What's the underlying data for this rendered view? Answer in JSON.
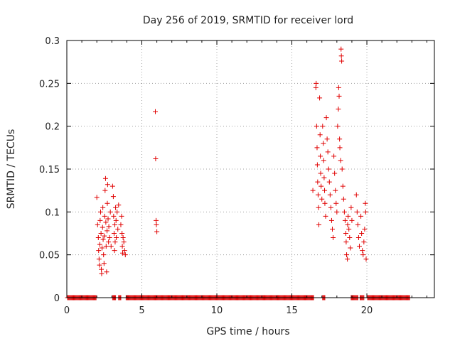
{
  "chart_data": {
    "type": "scatter",
    "title": "Day 256 of 2019, SRMTID for receiver lord",
    "xlabel": "GPS time / hours",
    "ylabel": "SRMTID / TECUs",
    "xlim": [
      0,
      24.5
    ],
    "ylim": [
      0,
      0.3
    ],
    "x_ticks": [
      0,
      5,
      10,
      15,
      20
    ],
    "x_tick_labels": [
      "0",
      "5",
      "10",
      "15",
      "20"
    ],
    "y_ticks": [
      0,
      0.05,
      0.1,
      0.15,
      0.2,
      0.25,
      0.3
    ],
    "y_tick_labels": [
      "0",
      "0.05",
      "0.1",
      "0.15",
      "0.2",
      "0.25",
      "0.3"
    ],
    "grid": true,
    "marker": "+",
    "series_color": "#e00000",
    "series": [
      {
        "name": "SRMTID",
        "points": [
          [
            2.0,
            0.117
          ],
          [
            2.05,
            0.085
          ],
          [
            2.1,
            0.07
          ],
          [
            2.12,
            0.055
          ],
          [
            2.15,
            0.045
          ],
          [
            2.18,
            0.038
          ],
          [
            2.2,
            0.062
          ],
          [
            2.22,
            0.09
          ],
          [
            2.25,
            0.1
          ],
          [
            2.28,
            0.075
          ],
          [
            2.3,
            0.033
          ],
          [
            2.32,
            0.028
          ],
          [
            2.35,
            0.058
          ],
          [
            2.38,
            0.082
          ],
          [
            2.4,
            0.105
          ],
          [
            2.42,
            0.068
          ],
          [
            2.45,
            0.05
          ],
          [
            2.48,
            0.04
          ],
          [
            2.5,
            0.072
          ],
          [
            2.52,
            0.095
          ],
          [
            2.55,
            0.125
          ],
          [
            2.58,
            0.139
          ],
          [
            2.6,
            0.088
          ],
          [
            2.62,
            0.06
          ],
          [
            2.65,
            0.03
          ],
          [
            2.68,
            0.078
          ],
          [
            2.7,
            0.11
          ],
          [
            2.72,
            0.132
          ],
          [
            2.75,
            0.092
          ],
          [
            2.78,
            0.065
          ],
          [
            2.8,
            0.083
          ],
          [
            2.85,
            0.07
          ],
          [
            2.9,
            0.1
          ],
          [
            2.95,
            0.06
          ],
          [
            3.05,
            0.13
          ],
          [
            3.1,
            0.118
          ],
          [
            3.12,
            0.095
          ],
          [
            3.15,
            0.075
          ],
          [
            3.18,
            0.055
          ],
          [
            3.2,
            0.085
          ],
          [
            3.22,
            0.065
          ],
          [
            3.25,
            0.105
          ],
          [
            3.28,
            0.09
          ],
          [
            3.3,
            0.07
          ],
          [
            3.35,
            0.1
          ],
          [
            3.4,
            0.08
          ],
          [
            3.45,
            0.108
          ],
          [
            3.6,
            0.085
          ],
          [
            3.65,
            0.095
          ],
          [
            3.68,
            0.075
          ],
          [
            3.7,
            0.06
          ],
          [
            3.72,
            0.052
          ],
          [
            3.75,
            0.07
          ],
          [
            3.8,
            0.065
          ],
          [
            3.85,
            0.055
          ],
          [
            3.9,
            0.05
          ],
          [
            5.9,
            0.217
          ],
          [
            5.92,
            0.162
          ],
          [
            5.95,
            0.09
          ],
          [
            5.97,
            0.085
          ],
          [
            6.0,
            0.077
          ],
          [
            16.4,
            0.125
          ],
          [
            16.6,
            0.245
          ],
          [
            16.62,
            0.25
          ],
          [
            16.65,
            0.2
          ],
          [
            16.68,
            0.175
          ],
          [
            16.7,
            0.155
          ],
          [
            16.72,
            0.135
          ],
          [
            16.75,
            0.12
          ],
          [
            16.78,
            0.105
          ],
          [
            16.8,
            0.085
          ],
          [
            16.85,
            0.233
          ],
          [
            16.88,
            0.19
          ],
          [
            16.9,
            0.165
          ],
          [
            16.92,
            0.145
          ],
          [
            16.95,
            0.13
          ],
          [
            17.0,
            0.115
          ],
          [
            17.05,
            0.2
          ],
          [
            17.1,
            0.18
          ],
          [
            17.12,
            0.16
          ],
          [
            17.15,
            0.14
          ],
          [
            17.18,
            0.125
          ],
          [
            17.2,
            0.11
          ],
          [
            17.25,
            0.095
          ],
          [
            17.3,
            0.21
          ],
          [
            17.35,
            0.185
          ],
          [
            17.4,
            0.17
          ],
          [
            17.45,
            0.15
          ],
          [
            17.5,
            0.135
          ],
          [
            17.55,
            0.12
          ],
          [
            17.6,
            0.105
          ],
          [
            17.65,
            0.09
          ],
          [
            17.7,
            0.08
          ],
          [
            17.75,
            0.07
          ],
          [
            17.8,
            0.165
          ],
          [
            17.85,
            0.145
          ],
          [
            17.9,
            0.125
          ],
          [
            17.95,
            0.11
          ],
          [
            18.0,
            0.1
          ],
          [
            18.05,
            0.2
          ],
          [
            18.1,
            0.22
          ],
          [
            18.12,
            0.245
          ],
          [
            18.15,
            0.235
          ],
          [
            18.18,
            0.185
          ],
          [
            18.2,
            0.175
          ],
          [
            18.25,
            0.16
          ],
          [
            18.28,
            0.29
          ],
          [
            18.3,
            0.282
          ],
          [
            18.32,
            0.276
          ],
          [
            18.35,
            0.15
          ],
          [
            18.4,
            0.13
          ],
          [
            18.45,
            0.115
          ],
          [
            18.5,
            0.1
          ],
          [
            18.55,
            0.09
          ],
          [
            18.6,
            0.075
          ],
          [
            18.62,
            0.065
          ],
          [
            18.65,
            0.05
          ],
          [
            18.7,
            0.045
          ],
          [
            18.72,
            0.085
          ],
          [
            18.75,
            0.095
          ],
          [
            18.8,
            0.08
          ],
          [
            18.85,
            0.07
          ],
          [
            18.9,
            0.058
          ],
          [
            18.95,
            0.105
          ],
          [
            19.0,
            0.09
          ],
          [
            19.3,
            0.12
          ],
          [
            19.35,
            0.1
          ],
          [
            19.4,
            0.085
          ],
          [
            19.45,
            0.07
          ],
          [
            19.5,
            0.06
          ],
          [
            19.6,
            0.095
          ],
          [
            19.65,
            0.075
          ],
          [
            19.7,
            0.055
          ],
          [
            19.75,
            0.05
          ],
          [
            19.8,
            0.065
          ],
          [
            19.85,
            0.08
          ],
          [
            19.9,
            0.11
          ],
          [
            19.92,
            0.1
          ],
          [
            19.95,
            0.045
          ]
        ],
        "zero_segments": [
          [
            0.05,
            1.95
          ],
          [
            3.05,
            3.25
          ],
          [
            3.45,
            3.6
          ],
          [
            3.95,
            16.45
          ],
          [
            17.05,
            17.2
          ],
          [
            18.95,
            19.4
          ],
          [
            19.55,
            19.8
          ],
          [
            20.05,
            22.85
          ]
        ]
      }
    ]
  }
}
